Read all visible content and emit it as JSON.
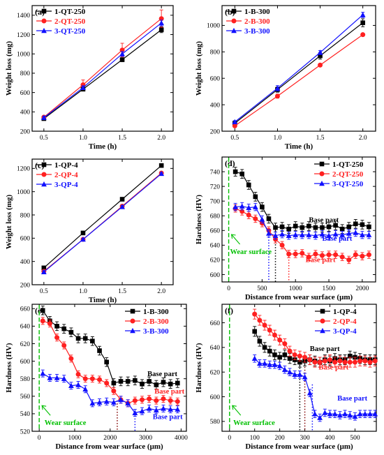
{
  "chart_data": [
    {
      "panel": "(a)",
      "type": "line",
      "xlabel": "Time (h)",
      "ylabel": "Weight loss (mg)",
      "xlim": [
        0.35,
        2.15
      ],
      "ylim": [
        200,
        1500
      ],
      "xticks": [
        0.5,
        1.0,
        1.5,
        2.0
      ],
      "yticks": [
        200,
        400,
        600,
        800,
        1000,
        1200,
        1400
      ],
      "xtick_labels": [
        "0.5",
        "1.0",
        "1.5",
        "2.0"
      ],
      "ytick_labels": [
        "200",
        "400",
        "600",
        "800",
        "1000",
        "1200",
        "1400"
      ],
      "x": [
        0.5,
        1.0,
        1.5,
        2.0
      ],
      "series": [
        {
          "name": "1-QT-250",
          "values": [
            330,
            635,
            940,
            1250
          ],
          "err": [
            15,
            15,
            20,
            30
          ],
          "color": "#000000",
          "marker": "square"
        },
        {
          "name": "2-QT-250",
          "values": [
            345,
            680,
            1040,
            1365
          ],
          "err": [
            15,
            50,
            70,
            90
          ],
          "color": "#ff2020",
          "marker": "circle"
        },
        {
          "name": "3-QT-250",
          "values": [
            340,
            650,
            1000,
            1320
          ],
          "err": [
            15,
            20,
            25,
            30
          ],
          "color": "#1010ff",
          "marker": "triangle"
        }
      ],
      "legend_position": "top-left"
    },
    {
      "panel": "(b)",
      "type": "line",
      "xlabel": "Time (h)",
      "ylabel": "Weight loss (mg)",
      "xlim": [
        0.35,
        2.15
      ],
      "ylim": [
        200,
        1150
      ],
      "xticks": [
        0.5,
        1.0,
        1.5,
        2.0
      ],
      "yticks": [
        200,
        400,
        600,
        800,
        1000
      ],
      "xtick_labels": [
        "0.5",
        "1.0",
        "1.5",
        "2.0"
      ],
      "ytick_labels": [
        "200",
        "400",
        "600",
        "800",
        "1000"
      ],
      "x": [
        0.5,
        1.0,
        1.5,
        2.0
      ],
      "series": [
        {
          "name": "1-B-300",
          "values": [
            260,
            515,
            770,
            1020
          ],
          "err": [
            10,
            20,
            25,
            30
          ],
          "color": "#000000",
          "marker": "square"
        },
        {
          "name": "2-B-300",
          "values": [
            240,
            465,
            700,
            930
          ],
          "err": [
            10,
            15,
            10,
            10
          ],
          "color": "#ff2020",
          "marker": "circle"
        },
        {
          "name": "3-B-300",
          "values": [
            270,
            525,
            795,
            1080
          ],
          "err": [
            10,
            20,
            15,
            20
          ],
          "color": "#1010ff",
          "marker": "triangle"
        }
      ],
      "legend_position": "top-left"
    },
    {
      "panel": "(c)",
      "type": "line",
      "xlabel": "Time (h)",
      "ylabel": "Weight loss (mg)",
      "xlim": [
        0.35,
        2.15
      ],
      "ylim": [
        200,
        1280
      ],
      "xticks": [
        0.5,
        1.0,
        1.5,
        2.0
      ],
      "yticks": [
        200,
        400,
        600,
        800,
        1000,
        1200
      ],
      "xtick_labels": [
        "0.5",
        "1.0",
        "1.5",
        "2.0"
      ],
      "ytick_labels": [
        "200",
        "400",
        "600",
        "800",
        "1000",
        "1200"
      ],
      "x": [
        0.5,
        1.0,
        1.5,
        2.0
      ],
      "series": [
        {
          "name": "1-QP-4",
          "values": [
            345,
            645,
            935,
            1225
          ],
          "err": [
            10,
            10,
            10,
            15
          ],
          "color": "#000000",
          "marker": "square"
        },
        {
          "name": "2-QP-4",
          "values": [
            315,
            590,
            875,
            1160
          ],
          "err": [
            10,
            10,
            10,
            10
          ],
          "color": "#ff2020",
          "marker": "circle"
        },
        {
          "name": "3-QP-4",
          "values": [
            310,
            590,
            870,
            1155
          ],
          "err": [
            10,
            10,
            10,
            10
          ],
          "color": "#1010ff",
          "marker": "triangle"
        }
      ],
      "legend_position": "top-left"
    },
    {
      "panel": "(d)",
      "type": "line",
      "xlabel": "Distance from wear surface (μm)",
      "ylabel": "Hardness (HV)",
      "xlim": [
        -100,
        2200
      ],
      "ylim": [
        590,
        760
      ],
      "xticks": [
        0,
        500,
        1000,
        1500,
        2000
      ],
      "yticks": [
        600,
        620,
        640,
        660,
        680,
        700,
        720,
        740
      ],
      "xtick_labels": [
        "0",
        "500",
        "1000",
        "1500",
        "2000"
      ],
      "ytick_labels": [
        "600",
        "620",
        "640",
        "660",
        "680",
        "700",
        "720",
        "740"
      ],
      "x": [
        100,
        200,
        300,
        400,
        500,
        600,
        700,
        800,
        900,
        1000,
        1100,
        1200,
        1300,
        1400,
        1500,
        1600,
        1700,
        1800,
        1900,
        2000,
        2100
      ],
      "series": [
        {
          "name": "1-QT-250",
          "values": [
            740,
            737,
            722,
            706,
            692,
            676,
            664,
            665,
            662,
            666,
            664,
            666,
            664,
            664,
            665,
            667,
            662,
            665,
            669,
            668,
            665
          ],
          "err": 6,
          "color": "#000000",
          "marker": "square"
        },
        {
          "name": "2-QT-250",
          "values": [
            690,
            686,
            681,
            676,
            670,
            660,
            648,
            640,
            628,
            628,
            629,
            624,
            628,
            626,
            627,
            627,
            624,
            620,
            627,
            625,
            627
          ],
          "err": 5,
          "color": "#ff2020",
          "marker": "circle"
        },
        {
          "name": "3-QT-250",
          "values": [
            692,
            693,
            691,
            692,
            675,
            656,
            653,
            655,
            653,
            654,
            654,
            654,
            653,
            655,
            653,
            655,
            654,
            656,
            657,
            654,
            654
          ],
          "err": 5,
          "color": "#1010ff",
          "marker": "triangle"
        }
      ],
      "boundaries": [
        {
          "x": 600,
          "y": 655,
          "color": "#1010ff"
        },
        {
          "x": 700,
          "y": 664,
          "color": "#000000"
        },
        {
          "x": 900,
          "y": 628,
          "color": "#ff2020"
        }
      ],
      "annotations": [
        {
          "text": "Base part",
          "x": 1200,
          "y": 671,
          "color": "#000000"
        },
        {
          "text": "Base part",
          "x": 1400,
          "y": 646,
          "color": "#1010ff"
        },
        {
          "text": "Base part",
          "x": 1150,
          "y": 617,
          "color": "#ff2020"
        },
        {
          "text": "Wear surface",
          "x": 20,
          "y": 628,
          "color": "#00c000"
        }
      ],
      "wear_surface_x": 0,
      "legend_position": "top-right"
    },
    {
      "panel": "(e)",
      "type": "line",
      "xlabel": "Distance from wear surface (μm)",
      "ylabel": "Hardness (HV)",
      "xlim": [
        -200,
        4150
      ],
      "ylim": [
        520,
        665
      ],
      "xticks": [
        0,
        1000,
        2000,
        3000,
        4000
      ],
      "yticks": [
        520,
        540,
        560,
        580,
        600,
        620,
        640,
        660
      ],
      "xtick_labels": [
        "0",
        "1000",
        "2000",
        "3000",
        "4000"
      ],
      "ytick_labels": [
        "520",
        "540",
        "560",
        "580",
        "600",
        "620",
        "640",
        "660"
      ],
      "x": [
        100,
        300,
        500,
        700,
        900,
        1100,
        1300,
        1500,
        1700,
        1900,
        2100,
        2300,
        2500,
        2700,
        2900,
        3100,
        3300,
        3500,
        3700,
        3900
      ],
      "series": [
        {
          "name": "1-B-300",
          "values": [
            658,
            646,
            640,
            637,
            633,
            626,
            626,
            623,
            612,
            599,
            575,
            577,
            577,
            578,
            574,
            577,
            573,
            576,
            574,
            575
          ],
          "err": 5,
          "color": "#000000",
          "marker": "square"
        },
        {
          "name": "2-B-300",
          "values": [
            646,
            643,
            627,
            618,
            603,
            585,
            580,
            580,
            579,
            575,
            566,
            556,
            552,
            555,
            556,
            557,
            555,
            557,
            555,
            554
          ],
          "err": 4,
          "color": "#ff2020",
          "marker": "circle"
        },
        {
          "name": "3-B-300",
          "values": [
            586,
            581,
            581,
            580,
            572,
            573,
            568,
            552,
            553,
            554,
            553,
            556,
            552,
            541,
            543,
            546,
            544,
            546,
            545,
            545
          ],
          "err": 4,
          "color": "#1010ff",
          "marker": "triangle"
        }
      ],
      "boundaries": [
        {
          "x": 2200,
          "y": 555,
          "color": "#800000"
        },
        {
          "x": 2700,
          "y": 541,
          "color": "#1010ff"
        }
      ],
      "annotations": [
        {
          "text": "Base part",
          "x": 3050,
          "y": 583,
          "color": "#000000"
        },
        {
          "text": "Base part",
          "x": 3250,
          "y": 563,
          "color": "#ff2020"
        },
        {
          "text": "Base part",
          "x": 3200,
          "y": 534,
          "color": "#1010ff"
        },
        {
          "text": "Wear surface",
          "x": 150,
          "y": 527,
          "color": "#00c000"
        }
      ],
      "wear_surface_x": 0,
      "legend_position": "top-right"
    },
    {
      "panel": "(f)",
      "type": "line",
      "xlabel": "Distance from wear surface (μm)",
      "ylabel": "Hardness (HV)",
      "xlim": [
        -30,
        585
      ],
      "ylim": [
        572,
        675
      ],
      "xticks": [
        0,
        100,
        200,
        300,
        400,
        500
      ],
      "yticks": [
        580,
        600,
        620,
        640,
        660
      ],
      "xtick_labels": [
        "0",
        "100",
        "200",
        "300",
        "400",
        "500"
      ],
      "ytick_labels": [
        "580",
        "600",
        "620",
        "640",
        "660"
      ],
      "x": [
        100,
        120,
        140,
        160,
        180,
        200,
        220,
        240,
        260,
        280,
        300,
        320,
        340,
        360,
        380,
        400,
        420,
        440,
        460,
        480,
        500,
        520,
        540,
        560,
        580
      ],
      "series": [
        {
          "name": "1-QP-4",
          "values": [
            653,
            645,
            640,
            637,
            634,
            632,
            634,
            631,
            630,
            628,
            629,
            630,
            629,
            628,
            630,
            629,
            631,
            630,
            630,
            633,
            632,
            631,
            630,
            630,
            630
          ],
          "err": 4,
          "color": "#000000",
          "marker": "square"
        },
        {
          "name": "2-QP-4",
          "values": [
            667,
            662,
            658,
            654,
            650,
            646,
            643,
            637,
            634,
            633,
            632,
            630,
            628,
            628,
            629,
            630,
            628,
            629,
            628,
            628,
            628,
            629,
            629,
            628,
            629
          ],
          "err": 4,
          "color": "#ff2020",
          "marker": "circle"
        },
        {
          "name": "3-QP-4",
          "values": [
            631,
            627,
            627,
            626,
            626,
            625,
            622,
            620,
            618,
            618,
            616,
            603,
            586,
            583,
            587,
            586,
            586,
            585,
            586,
            585,
            584,
            586,
            586,
            586,
            586
          ],
          "err": 3,
          "color": "#1010ff",
          "marker": "triangle"
        }
      ],
      "boundaries": [
        {
          "x": 280,
          "y": 628,
          "color": "#000000"
        },
        {
          "x": 300,
          "y": 631,
          "color": "#800000"
        },
        {
          "x": 330,
          "y": 610,
          "color": "#1010ff"
        }
      ],
      "annotations": [
        {
          "text": "Base part",
          "x": 320,
          "y": 637,
          "color": "#000000"
        },
        {
          "text": "Base part",
          "x": 355,
          "y": 622,
          "color": "#ff2020"
        },
        {
          "text": "Base part",
          "x": 430,
          "y": 597,
          "color": "#1010ff"
        },
        {
          "text": "Wear surface",
          "x": 15,
          "y": 577,
          "color": "#00c000"
        }
      ],
      "wear_surface_x": 0,
      "legend_position": "top-right"
    }
  ]
}
